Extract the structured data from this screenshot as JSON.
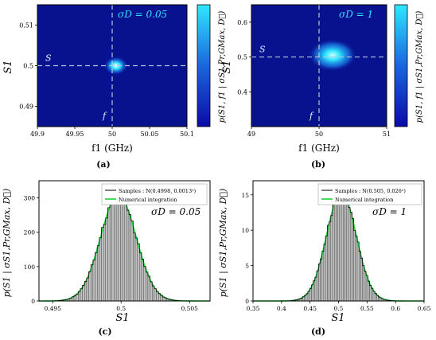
{
  "chart_data": [
    {
      "type": "heatmap",
      "panel_label": "(a)",
      "annotation": "σD = 0.05",
      "xlabel": "f1 (GHz)",
      "ylabel": "S1",
      "colorbar_label": "p(S1, f1 | σS1,Pr,GMax, D⃗)",
      "xlim": [
        49.9,
        50.1
      ],
      "ylim": [
        0.485,
        0.515
      ],
      "xticks": [
        "49.9",
        "49.95",
        "50",
        "50.05",
        "50.1"
      ],
      "yticks": [
        "0.49",
        "0.5",
        "0.51"
      ],
      "ytick_values": [
        0.49,
        0.5,
        0.51
      ],
      "crosshair": {
        "x": 50.0,
        "y": 0.5,
        "x_label": "f",
        "y_label": "S"
      },
      "peak": {
        "x": 50.005,
        "y": 0.5,
        "sx": 0.009,
        "sy": 0.0013
      }
    },
    {
      "type": "heatmap",
      "panel_label": "(b)",
      "annotation": "σD = 1",
      "xlabel": "f1 (GHz)",
      "ylabel": "S1",
      "colorbar_label": "p(S1, f1 | σS1,Pr,GMax, D⃗)",
      "xlim": [
        49,
        51
      ],
      "ylim": [
        0.3,
        0.65
      ],
      "xticks": [
        "49",
        "50",
        "51"
      ],
      "yticks": [
        "0.4",
        "0.5",
        "0.6"
      ],
      "ytick_values": [
        0.4,
        0.5,
        0.6
      ],
      "crosshair": {
        "x": 50.0,
        "y": 0.5,
        "x_label": "f",
        "y_label": "S"
      },
      "peak": {
        "x": 50.2,
        "y": 0.505,
        "sx": 0.2,
        "sy": 0.026
      }
    },
    {
      "type": "bar",
      "panel_label": "(c)",
      "annotation": "σD = 0.05",
      "xlabel": "S1",
      "ylabel": "p(S1 | σS1,Pr,GMax, D⃗)",
      "xlim": [
        0.494,
        0.5065
      ],
      "ylim": [
        0,
        350
      ],
      "xticks": [
        "0.495",
        "0.5",
        "0.505"
      ],
      "xtick_values": [
        0.495,
        0.5,
        0.505
      ],
      "yticks": [
        "0",
        "100",
        "200",
        "300"
      ],
      "ytick_values": [
        0,
        100,
        200,
        300
      ],
      "legend": [
        "Samples : N(0.4998, 0.0013²)",
        "Numerical integration"
      ],
      "legend_position": "top-right",
      "mean": 0.4998,
      "std": 0.0013,
      "bins": 64
    },
    {
      "type": "bar",
      "panel_label": "(d)",
      "annotation": "σD = 1",
      "xlabel": "S1",
      "ylabel": "p(S1 | σS1,Pr,GMax, D⃗)",
      "xlim": [
        0.35,
        0.65
      ],
      "ylim": [
        0,
        17
      ],
      "xticks": [
        "0.35",
        "0.4",
        "0.45",
        "0.5",
        "0.55",
        "0.6",
        "0.65"
      ],
      "xtick_values": [
        0.35,
        0.4,
        0.45,
        0.5,
        0.55,
        0.6,
        0.65
      ],
      "yticks": [
        "0",
        "5",
        "10",
        "15"
      ],
      "ytick_values": [
        0,
        5,
        10,
        15
      ],
      "legend": [
        "Samples : N(0.505, 0.026²)",
        "Numerical integration"
      ],
      "legend_position": "top-right",
      "mean": 0.505,
      "std": 0.026,
      "bins": 64
    }
  ],
  "colors": {
    "heatmap_bg": "#08128f",
    "heatmap_peak": "#2fe3ff",
    "crosshair": "#b4c3de",
    "bar_fill": "#bfbfbf",
    "bar_edge": "#2a2a2a",
    "sample_line": "#000000",
    "integration_line": "#1fcf3c",
    "colorbar_top": "#2ee8ff",
    "colorbar_bottom": "#0a0aa8"
  }
}
